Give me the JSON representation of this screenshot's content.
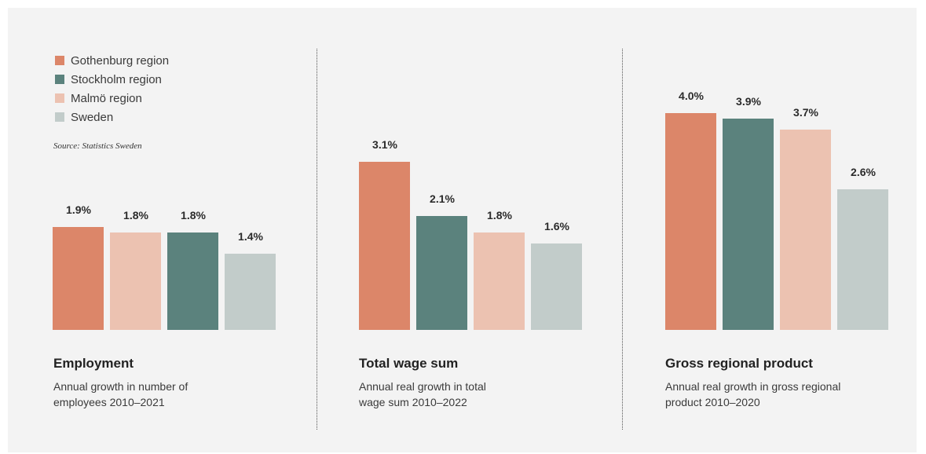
{
  "legend": [
    {
      "label": "Gothenburg region",
      "color": "#dc8669"
    },
    {
      "label": "Stockholm region",
      "color": "#5b827d"
    },
    {
      "label": "Malmö region",
      "color": "#ecc2b1"
    },
    {
      "label": "Sweden",
      "color": "#c2ccca"
    }
  ],
  "source": "Source: Statistics Sweden",
  "chart_data": [
    {
      "type": "bar",
      "title": "Employment",
      "subtitle": "Annual growth in number of\nemployees 2010–2021",
      "categories": [
        "Gothenburg region",
        "Malmö region",
        "Stockholm region",
        "Sweden"
      ],
      "values": [
        1.9,
        1.8,
        1.8,
        1.4
      ],
      "labels": [
        "1.9%",
        "1.8%",
        "1.8%",
        "1.4%"
      ],
      "colors": [
        "#dc8669",
        "#ecc2b1",
        "#5b827d",
        "#c2ccca"
      ],
      "unit": "%"
    },
    {
      "type": "bar",
      "title": "Total wage sum",
      "subtitle": "Annual real growth in total\nwage sum 2010–2022",
      "categories": [
        "Gothenburg region",
        "Stockholm region",
        "Malmö region",
        "Sweden"
      ],
      "values": [
        3.1,
        2.1,
        1.8,
        1.6
      ],
      "labels": [
        "3.1%",
        "2.1%",
        "1.8%",
        "1.6%"
      ],
      "colors": [
        "#dc8669",
        "#5b827d",
        "#ecc2b1",
        "#c2ccca"
      ],
      "unit": "%"
    },
    {
      "type": "bar",
      "title": "Gross regional product",
      "subtitle": "Annual real growth in gross regional\nproduct 2010–2020",
      "categories": [
        "Gothenburg region",
        "Stockholm region",
        "Malmö region",
        "Sweden"
      ],
      "values": [
        4.0,
        3.9,
        3.7,
        2.6
      ],
      "labels": [
        "4.0%",
        "3.9%",
        "3.7%",
        "2.6%"
      ],
      "colors": [
        "#dc8669",
        "#5b827d",
        "#ecc2b1",
        "#c2ccca"
      ],
      "unit": "%"
    }
  ]
}
